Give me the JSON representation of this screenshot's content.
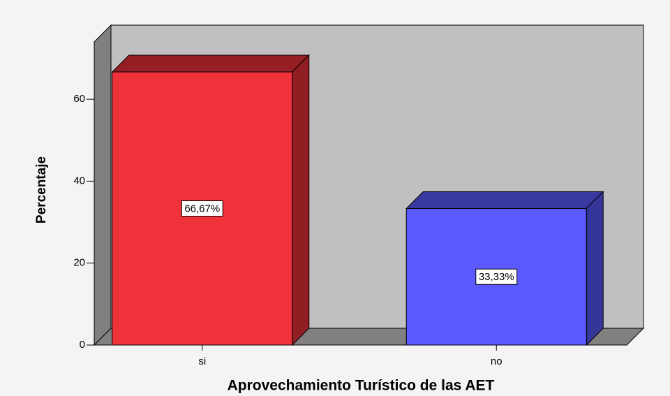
{
  "chart_data": {
    "type": "bar3d",
    "x_label": "Aprovechamiento Turístico de las AET",
    "y_label": "Percentaje",
    "categories": [
      "si",
      "no"
    ],
    "values": [
      66.67,
      33.33
    ],
    "value_labels": [
      "66,67%",
      "33,33%"
    ],
    "colors": [
      "#f0323a",
      "#5a5aff"
    ],
    "ylim": [
      0,
      74
    ],
    "yticks": [
      0,
      20,
      40,
      60
    ],
    "grid": false
  }
}
